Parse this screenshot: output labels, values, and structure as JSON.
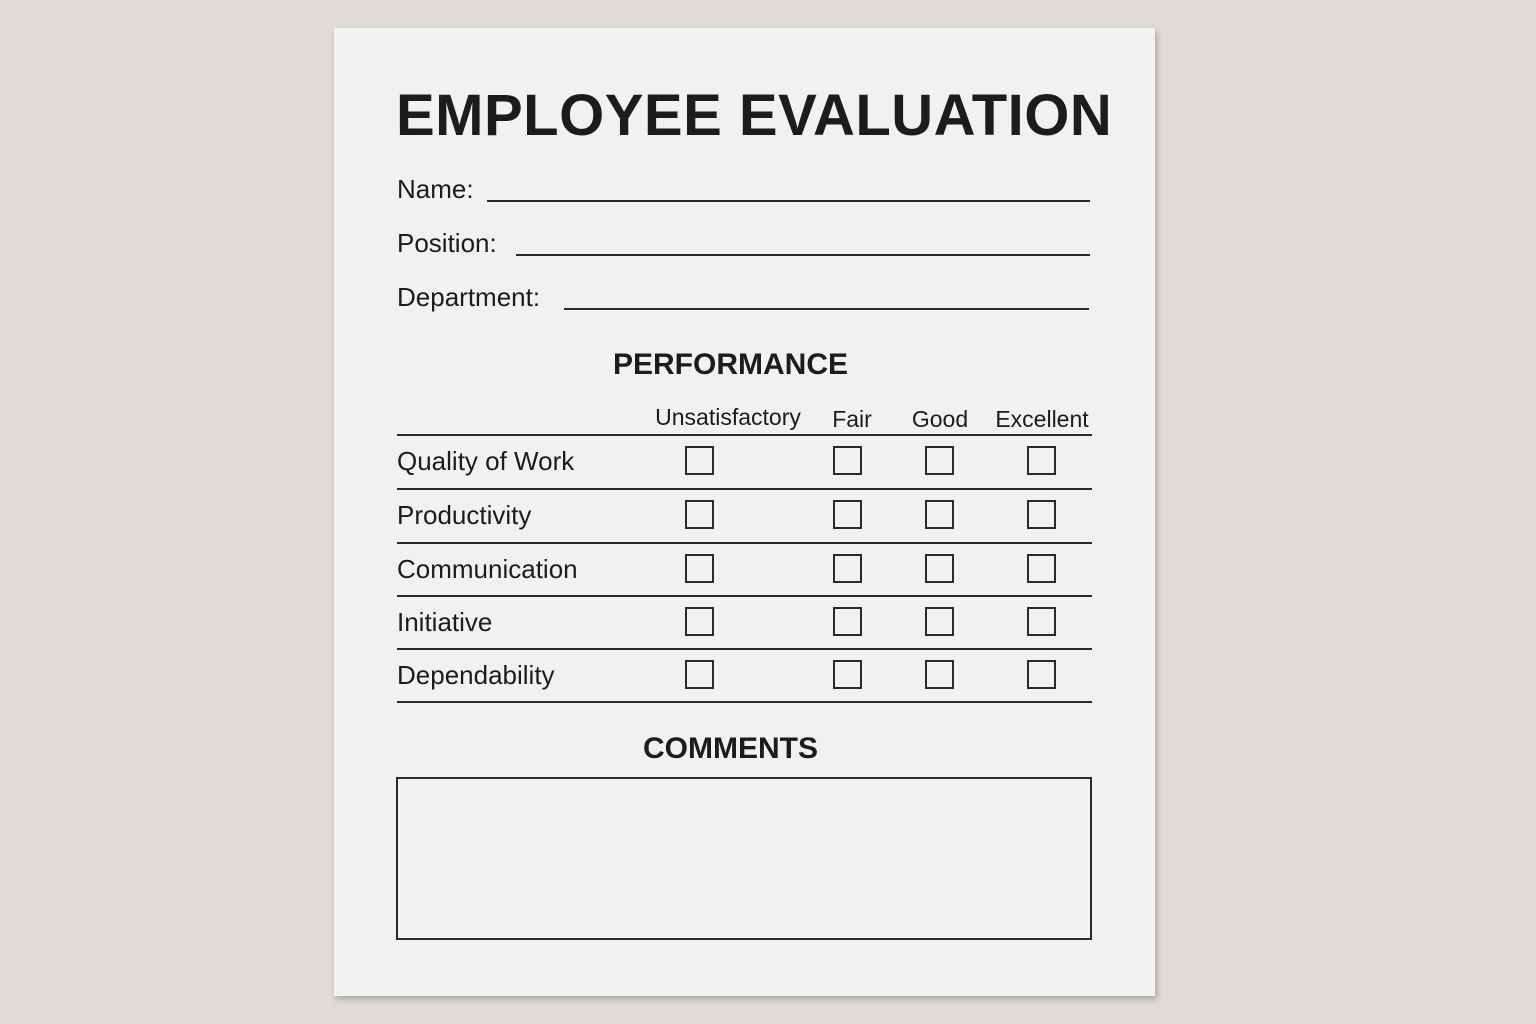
{
  "title": "EMPLOYEE EVALUATION",
  "fields": [
    {
      "label": "Name:",
      "value": ""
    },
    {
      "label": "Position:",
      "value": ""
    },
    {
      "label": "Department:",
      "value": ""
    }
  ],
  "performance": {
    "heading": "PERFORMANCE",
    "columns": [
      "Unsatisfactory",
      "Fair",
      "Good",
      "Excellent"
    ],
    "rows": [
      "Quality of Work",
      "Productivity",
      "Communication",
      "Initiative",
      "Dependability"
    ]
  },
  "comments": {
    "heading": "COMMENTS",
    "value": ""
  }
}
